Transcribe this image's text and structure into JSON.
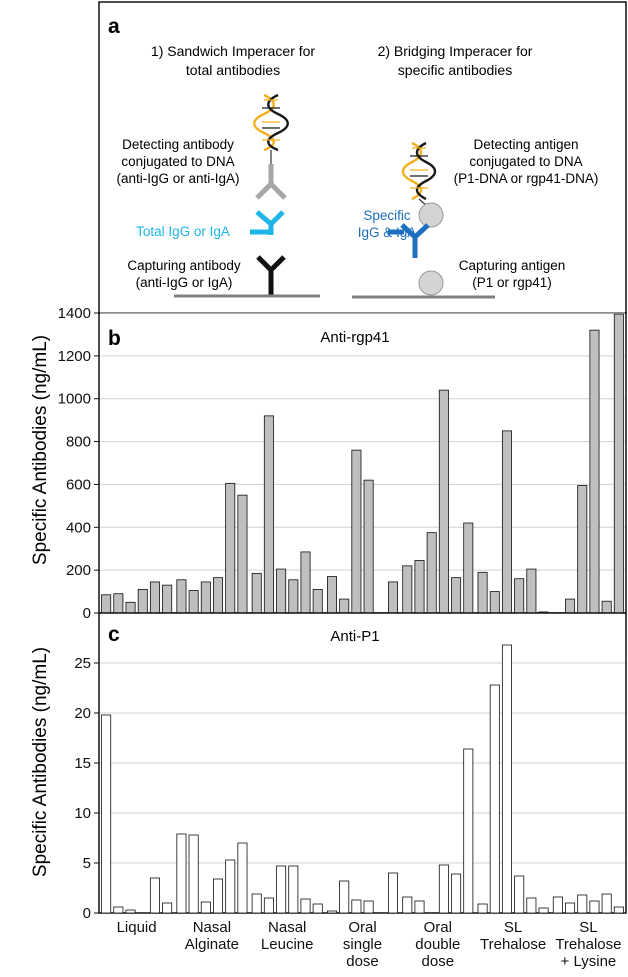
{
  "panel_a": {
    "panel_label": "a",
    "left_title": [
      "1) Sandwich Imperacer for",
      "total antibodies"
    ],
    "right_title": [
      "2) Bridging Imperacer for",
      "specific antibodies"
    ],
    "left_detect": [
      "Detecting antibody",
      "conjugated to DNA",
      "(anti-IgG or anti-IgA)"
    ],
    "left_total": "Total IgG or IgA",
    "left_capture": [
      "Capturing antibody",
      "(anti-IgG or IgA)"
    ],
    "right_detect": [
      "Detecting  antigen",
      "conjugated to DNA",
      "(P1-DNA or rgp41-DNA)"
    ],
    "right_specific": [
      "Specific",
      "IgG & IgA"
    ],
    "right_capture": [
      "Capturing antigen",
      "(P1 or rgp41)"
    ],
    "colors": {
      "detect": "#a6a6a6",
      "total": "#1fb5ea",
      "capture": "#111111",
      "specific": "#1d6fc0",
      "bead": "#d4d4d4",
      "surface": "#7f7f7f"
    }
  },
  "chart_data": [
    {
      "type": "bar",
      "panel_label": "b",
      "title": "Anti-rgp41",
      "ylabel": "Specific Antibodies (ng/mL)",
      "ylim": [
        0,
        1400
      ],
      "yticks": [
        "0",
        "200",
        "400",
        "600",
        "800",
        "1000",
        "1200",
        "1400"
      ],
      "grid": true,
      "bar_color": "#bfbfbf",
      "groups": [
        {
          "label": [
            "Liquid"
          ],
          "values": [
            85,
            90,
            50,
            110,
            145,
            130
          ]
        },
        {
          "label": [
            "Nasal",
            "Alginate"
          ],
          "values": [
            155,
            105,
            145,
            165,
            605,
            550
          ]
        },
        {
          "label": [
            "Nasal",
            "Leucine"
          ],
          "values": [
            185,
            920,
            205,
            155,
            285,
            110
          ]
        },
        {
          "label": [
            "Oral",
            "single",
            "dose"
          ],
          "values": [
            170,
            65,
            760,
            620,
            0,
            145
          ]
        },
        {
          "label": [
            "Oral",
            "double",
            "dose"
          ],
          "values": [
            220,
            245,
            375,
            1040,
            165,
            420
          ]
        },
        {
          "label": [
            "SL",
            "Trehalose"
          ],
          "values": [
            190,
            100,
            850,
            160,
            205,
            5
          ]
        },
        {
          "label": [
            "SL",
            "Trehalose",
            "+ Lysine"
          ],
          "values": [
            0,
            65,
            595,
            1320,
            55,
            1395
          ]
        }
      ]
    },
    {
      "type": "bar",
      "panel_label": "c",
      "title": "Anti-P1",
      "ylabel": "Specific Antibodies (ng/mL)",
      "ylim": [
        0,
        27.5
      ],
      "yticks": [
        "0",
        "5",
        "10",
        "15",
        "20",
        "25"
      ],
      "grid": true,
      "bar_color": "#ffffff",
      "groups": [
        {
          "label": [
            "Liquid"
          ],
          "values": [
            19.8,
            0.6,
            0.3,
            0,
            3.5,
            1.0
          ]
        },
        {
          "label": [
            "Nasal",
            "Alginate"
          ],
          "values": [
            7.9,
            7.8,
            1.1,
            3.4,
            5.3,
            7.0
          ]
        },
        {
          "label": [
            "Nasal",
            "Leucine"
          ],
          "values": [
            1.9,
            1.5,
            4.7,
            4.7,
            1.4,
            0.9
          ]
        },
        {
          "label": [
            "Oral",
            "single",
            "dose"
          ],
          "values": [
            0.2,
            3.2,
            1.3,
            1.2,
            0,
            4.0
          ]
        },
        {
          "label": [
            "Oral",
            "double",
            "dose"
          ],
          "values": [
            1.6,
            1.2,
            0,
            4.8,
            3.9,
            16.4
          ]
        },
        {
          "label": [
            "SL",
            "Trehalose"
          ],
          "values": [
            0.9,
            22.8,
            26.8,
            3.7,
            1.5,
            0.5
          ]
        },
        {
          "label": [
            "SL",
            "Trehalose",
            "+ Lysine"
          ],
          "values": [
            1.6,
            1.0,
            1.8,
            1.2,
            1.9,
            0.6
          ]
        }
      ]
    }
  ]
}
